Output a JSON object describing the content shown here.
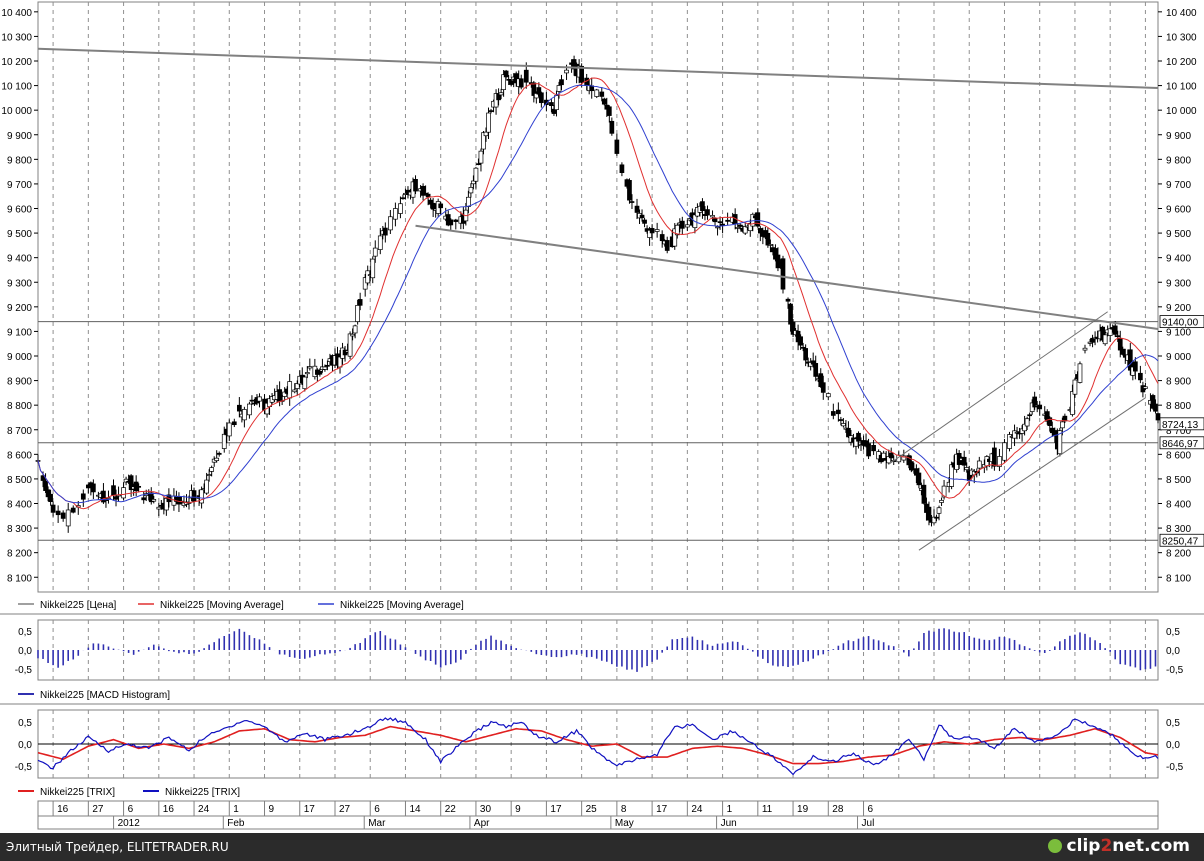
{
  "footer": {
    "credit": "Элитный Трейдер, ELITETRADER.RU",
    "logo_a": "clip",
    "logo_b": "2",
    "logo_c": "net",
    "logo_d": ".com"
  },
  "chart_data": [
    {
      "type": "candlestick",
      "y_ticks": [
        8100,
        8200,
        8300,
        8400,
        8500,
        8600,
        8700,
        8800,
        8900,
        9000,
        9100,
        9200,
        9300,
        9400,
        9500,
        9600,
        9700,
        9800,
        9900,
        10000,
        10100,
        10200,
        10300,
        10400
      ],
      "ylim": [
        8040,
        10440
      ],
      "grid": true,
      "legend": [
        {
          "label": "Nikkei225 [Цена]",
          "color": "#808080"
        },
        {
          "label": "Nikkei225 [Moving Average]",
          "color": "#e03030"
        },
        {
          "label": "Nikkei225 [Moving Average]",
          "color": "#3040d0"
        }
      ],
      "price_labels": [
        "9140,00",
        "8724,13",
        "8646,97",
        "8250,47"
      ],
      "levels": [
        9140,
        8646.97,
        8250.47
      ],
      "close_anchors": [
        [
          0,
          8550
        ],
        [
          5,
          8400
        ],
        [
          10,
          8320
        ],
        [
          15,
          8380
        ],
        [
          20,
          8460
        ],
        [
          25,
          8440
        ],
        [
          30,
          8420
        ],
        [
          35,
          8470
        ],
        [
          40,
          8440
        ],
        [
          45,
          8420
        ],
        [
          50,
          8400
        ],
        [
          55,
          8410
        ],
        [
          60,
          8430
        ],
        [
          65,
          8450
        ],
        [
          70,
          8580
        ],
        [
          75,
          8700
        ],
        [
          80,
          8780
        ],
        [
          85,
          8820
        ],
        [
          90,
          8800
        ],
        [
          95,
          8830
        ],
        [
          100,
          8870
        ],
        [
          105,
          8900
        ],
        [
          110,
          8950
        ],
        [
          115,
          8960
        ],
        [
          120,
          8980
        ],
        [
          125,
          9100
        ],
        [
          130,
          9300
        ],
        [
          135,
          9450
        ],
        [
          140,
          9550
        ],
        [
          145,
          9620
        ],
        [
          150,
          9700
        ],
        [
          155,
          9620
        ],
        [
          160,
          9600
        ],
        [
          165,
          9520
        ],
        [
          170,
          9580
        ],
        [
          175,
          9800
        ],
        [
          180,
          10000
        ],
        [
          185,
          10120
        ],
        [
          190,
          10130
        ],
        [
          195,
          10100
        ],
        [
          200,
          10050
        ],
        [
          205,
          10000
        ],
        [
          210,
          10180
        ],
        [
          215,
          10150
        ],
        [
          220,
          10080
        ],
        [
          225,
          10050
        ],
        [
          230,
          9820
        ],
        [
          235,
          9650
        ],
        [
          240,
          9550
        ],
        [
          245,
          9500
        ],
        [
          250,
          9440
        ],
        [
          255,
          9520
        ],
        [
          260,
          9560
        ],
        [
          265,
          9600
        ],
        [
          270,
          9540
        ],
        [
          275,
          9550
        ],
        [
          280,
          9530
        ],
        [
          285,
          9560
        ],
        [
          290,
          9450
        ],
        [
          295,
          9350
        ],
        [
          300,
          9100
        ],
        [
          305,
          9000
        ],
        [
          310,
          8900
        ],
        [
          315,
          8800
        ],
        [
          320,
          8700
        ],
        [
          325,
          8650
        ],
        [
          330,
          8600
        ],
        [
          335,
          8580
        ],
        [
          340,
          8560
        ],
        [
          345,
          8600
        ],
        [
          350,
          8480
        ],
        [
          355,
          8300
        ],
        [
          360,
          8450
        ],
        [
          365,
          8600
        ],
        [
          370,
          8500
        ],
        [
          375,
          8560
        ],
        [
          380,
          8580
        ],
        [
          385,
          8640
        ],
        [
          390,
          8700
        ],
        [
          395,
          8800
        ],
        [
          400,
          8750
        ],
        [
          405,
          8650
        ],
        [
          410,
          8800
        ],
        [
          415,
          9000
        ],
        [
          420,
          9080
        ],
        [
          425,
          9100
        ],
        [
          430,
          9050
        ],
        [
          435,
          8950
        ],
        [
          440,
          8850
        ],
        [
          445,
          8720
        ]
      ],
      "ma_fast_period": 5,
      "ma_slow_period": 10,
      "trend_lines": [
        [
          [
            0,
            10250
          ],
          [
            445,
            10090
          ]
        ],
        [
          [
            150,
            9530
          ],
          [
            445,
            9110
          ]
        ],
        [
          [
            338,
            8560
          ],
          [
            425,
            9180
          ]
        ],
        [
          [
            350,
            8210
          ],
          [
            440,
            8830
          ]
        ]
      ]
    },
    {
      "type": "bar",
      "series_name": "Nikkei225 [MACD Histogram]",
      "color": "#3030b0",
      "y_ticks": [
        "0,5",
        "0,0",
        "-0,5"
      ],
      "ylim": [
        -0.78,
        0.78
      ],
      "anchors": [
        [
          0,
          -0.2
        ],
        [
          8,
          -0.45
        ],
        [
          15,
          -0.2
        ],
        [
          22,
          0.2
        ],
        [
          30,
          0.05
        ],
        [
          38,
          -0.1
        ],
        [
          46,
          0.15
        ],
        [
          54,
          -0.05
        ],
        [
          62,
          -0.1
        ],
        [
          70,
          0.2
        ],
        [
          80,
          0.55
        ],
        [
          88,
          0.25
        ],
        [
          96,
          -0.1
        ],
        [
          104,
          -0.25
        ],
        [
          112,
          -0.1
        ],
        [
          120,
          -0.05
        ],
        [
          128,
          0.2
        ],
        [
          135,
          0.5
        ],
        [
          142,
          0.25
        ],
        [
          150,
          -0.1
        ],
        [
          160,
          -0.45
        ],
        [
          168,
          -0.25
        ],
        [
          175,
          0.2
        ],
        [
          180,
          0.35
        ],
        [
          188,
          0.1
        ],
        [
          195,
          -0.05
        ],
        [
          205,
          -0.2
        ],
        [
          215,
          -0.1
        ],
        [
          225,
          -0.3
        ],
        [
          232,
          -0.45
        ],
        [
          238,
          -0.55
        ],
        [
          245,
          -0.3
        ],
        [
          252,
          0.25
        ],
        [
          260,
          0.35
        ],
        [
          268,
          0.1
        ],
        [
          276,
          0.25
        ],
        [
          282,
          0.05
        ],
        [
          290,
          -0.35
        ],
        [
          298,
          -0.45
        ],
        [
          305,
          -0.3
        ],
        [
          312,
          -0.1
        ],
        [
          320,
          0.2
        ],
        [
          330,
          0.35
        ],
        [
          340,
          0.1
        ],
        [
          346,
          -0.15
        ],
        [
          352,
          0.45
        ],
        [
          360,
          0.55
        ],
        [
          368,
          0.45
        ],
        [
          375,
          0.25
        ],
        [
          385,
          0.35
        ],
        [
          392,
          0.1
        ],
        [
          400,
          -0.1
        ],
        [
          408,
          0.3
        ],
        [
          415,
          0.45
        ],
        [
          422,
          0.2
        ],
        [
          430,
          -0.35
        ],
        [
          438,
          -0.5
        ],
        [
          445,
          -0.45
        ]
      ],
      "legend": [
        {
          "label": "Nikkei225 [MACD Histogram]",
          "color": "#3030b0"
        }
      ]
    },
    {
      "type": "line",
      "y_ticks": [
        "0,5",
        "0,0",
        "-0,5"
      ],
      "ylim": [
        -0.78,
        0.78
      ],
      "series": [
        {
          "name": "Nikkei225 [TRIX]",
          "color": "#e02020",
          "anchors": [
            [
              0,
              -0.2
            ],
            [
              10,
              -0.35
            ],
            [
              20,
              -0.05
            ],
            [
              30,
              0.1
            ],
            [
              40,
              -0.1
            ],
            [
              50,
              0.0
            ],
            [
              60,
              -0.1
            ],
            [
              70,
              0.05
            ],
            [
              80,
              0.3
            ],
            [
              90,
              0.35
            ],
            [
              100,
              0.1
            ],
            [
              110,
              0.05
            ],
            [
              120,
              0.15
            ],
            [
              130,
              0.2
            ],
            [
              140,
              0.4
            ],
            [
              150,
              0.3
            ],
            [
              160,
              0.2
            ],
            [
              170,
              0.05
            ],
            [
              180,
              0.2
            ],
            [
              190,
              0.35
            ],
            [
              200,
              0.3
            ],
            [
              210,
              0.1
            ],
            [
              220,
              -0.05
            ],
            [
              230,
              0.0
            ],
            [
              240,
              -0.3
            ],
            [
              250,
              -0.3
            ],
            [
              260,
              -0.1
            ],
            [
              270,
              -0.05
            ],
            [
              280,
              -0.1
            ],
            [
              290,
              -0.25
            ],
            [
              300,
              -0.45
            ],
            [
              310,
              -0.45
            ],
            [
              320,
              -0.4
            ],
            [
              330,
              -0.3
            ],
            [
              340,
              -0.25
            ],
            [
              350,
              -0.05
            ],
            [
              360,
              0.05
            ],
            [
              370,
              0.0
            ],
            [
              380,
              0.1
            ],
            [
              390,
              0.15
            ],
            [
              400,
              0.1
            ],
            [
              410,
              0.2
            ],
            [
              420,
              0.35
            ],
            [
              430,
              0.15
            ],
            [
              440,
              -0.2
            ],
            [
              445,
              -0.25
            ]
          ]
        },
        {
          "name": "Nikkei225 [TRIX]",
          "color": "#1010c0",
          "anchors": [
            [
              0,
              -0.4
            ],
            [
              6,
              -0.55
            ],
            [
              12,
              -0.2
            ],
            [
              20,
              0.15
            ],
            [
              28,
              -0.15
            ],
            [
              36,
              0.0
            ],
            [
              44,
              -0.1
            ],
            [
              52,
              0.15
            ],
            [
              60,
              -0.15
            ],
            [
              66,
              0.15
            ],
            [
              74,
              0.35
            ],
            [
              82,
              0.55
            ],
            [
              90,
              0.4
            ],
            [
              98,
              0.05
            ],
            [
              106,
              0.25
            ],
            [
              114,
              0.1
            ],
            [
              122,
              0.2
            ],
            [
              130,
              0.35
            ],
            [
              138,
              0.6
            ],
            [
              146,
              0.5
            ],
            [
              154,
              0.1
            ],
            [
              160,
              -0.4
            ],
            [
              166,
              -0.1
            ],
            [
              172,
              0.2
            ],
            [
              180,
              0.5
            ],
            [
              186,
              0.4
            ],
            [
              192,
              0.5
            ],
            [
              198,
              0.2
            ],
            [
              206,
              0.05
            ],
            [
              214,
              0.3
            ],
            [
              222,
              -0.2
            ],
            [
              230,
              -0.5
            ],
            [
              238,
              -0.35
            ],
            [
              246,
              -0.25
            ],
            [
              252,
              0.35
            ],
            [
              260,
              0.45
            ],
            [
              268,
              0.1
            ],
            [
              276,
              0.3
            ],
            [
              284,
              0.0
            ],
            [
              292,
              -0.3
            ],
            [
              300,
              -0.7
            ],
            [
              308,
              -0.3
            ],
            [
              316,
              -0.4
            ],
            [
              324,
              -0.2
            ],
            [
              332,
              -0.5
            ],
            [
              338,
              -0.3
            ],
            [
              346,
              0.1
            ],
            [
              352,
              -0.35
            ],
            [
              358,
              0.45
            ],
            [
              364,
              0.1
            ],
            [
              372,
              0.15
            ],
            [
              380,
              -0.1
            ],
            [
              388,
              0.35
            ],
            [
              396,
              0.05
            ],
            [
              404,
              0.2
            ],
            [
              412,
              0.55
            ],
            [
              420,
              0.4
            ],
            [
              428,
              0.15
            ],
            [
              436,
              -0.3
            ],
            [
              445,
              -0.3
            ]
          ]
        }
      ],
      "legend": [
        {
          "label": "Nikkei225 [TRIX]",
          "color": "#e02020"
        },
        {
          "label": "Nikkei225 [TRIX]",
          "color": "#1010c0"
        }
      ]
    }
  ],
  "x_axis": {
    "day_ticks": [
      {
        "label": "16",
        "i": 6
      },
      {
        "label": "27",
        "i": 20
      },
      {
        "label": "6",
        "i": 34
      },
      {
        "label": "16",
        "i": 48
      },
      {
        "label": "24",
        "i": 62
      },
      {
        "label": "1",
        "i": 76
      },
      {
        "label": "9",
        "i": 90
      },
      {
        "label": "17",
        "i": 104
      },
      {
        "label": "27",
        "i": 118
      },
      {
        "label": "6",
        "i": 132
      },
      {
        "label": "14",
        "i": 146
      },
      {
        "label": "22",
        "i": 160
      },
      {
        "label": "30",
        "i": 174
      },
      {
        "label": "9",
        "i": 188
      },
      {
        "label": "17",
        "i": 202
      },
      {
        "label": "25",
        "i": 216
      },
      {
        "label": "8",
        "i": 230
      },
      {
        "label": "17",
        "i": 244
      },
      {
        "label": "24",
        "i": 258
      },
      {
        "label": "1",
        "i": 272
      },
      {
        "label": "11",
        "i": 286
      },
      {
        "label": "19",
        "i": 300
      },
      {
        "label": "28",
        "i": 314
      },
      {
        "label": "6",
        "i": 328
      }
    ],
    "month_ticks": [
      {
        "label": "2012",
        "i": 30
      },
      {
        "label": "Feb",
        "i": 76
      },
      {
        "label": "Mar",
        "i": 126
      },
      {
        "label": "Apr",
        "i": 174
      },
      {
        "label": "May",
        "i": 222
      },
      {
        "label": "Jun",
        "i": 268
      },
      {
        "label": "Jul",
        "i": 315
      }
    ]
  }
}
